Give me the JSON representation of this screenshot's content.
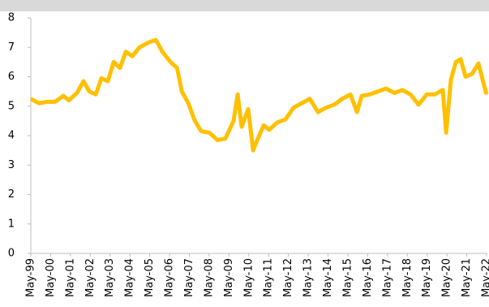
{
  "chart_data": {
    "type": "line",
    "x": [
      1999.33,
      1999.74,
      2000.15,
      2000.56,
      2000.97,
      2001.25,
      2001.66,
      2001.99,
      2002.28,
      2002.61,
      2002.89,
      2003.22,
      2003.51,
      2003.83,
      2004.12,
      2004.45,
      2004.82,
      2005.23,
      2005.64,
      2005.97,
      2006.38,
      2006.71,
      2006.95,
      2007.28,
      2007.61,
      2007.93,
      2008.34,
      2008.75,
      2009.15,
      2009.56,
      2009.77,
      2009.97,
      2010.3,
      2010.55,
      2010.79,
      2011.08,
      2011.36,
      2011.77,
      2012.18,
      2012.59,
      2013.0,
      2013.41,
      2013.82,
      2014.23,
      2014.64,
      2015.05,
      2015.46,
      2015.79,
      2016.03,
      2016.44,
      2016.85,
      2017.26,
      2017.67,
      2018.08,
      2018.49,
      2018.9,
      2019.31,
      2019.72,
      2020.12,
      2020.29,
      2020.53,
      2020.78,
      2021.02,
      2021.27,
      2021.6,
      2021.92,
      2022.17,
      2022.33
    ],
    "series": [
      {
        "color": "#ffc000",
        "values": [
          5.25,
          5.1,
          5.15,
          5.15,
          5.35,
          5.2,
          5.45,
          5.85,
          5.5,
          5.4,
          5.95,
          5.85,
          6.5,
          6.3,
          6.85,
          6.7,
          7.0,
          7.15,
          7.25,
          6.85,
          6.5,
          6.3,
          5.5,
          5.1,
          4.5,
          4.15,
          4.1,
          3.85,
          3.9,
          4.5,
          5.4,
          4.3,
          4.9,
          3.5,
          3.9,
          4.35,
          4.2,
          4.45,
          4.55,
          4.95,
          5.1,
          5.25,
          4.8,
          4.95,
          5.05,
          5.25,
          5.4,
          4.8,
          5.35,
          5.4,
          5.5,
          5.6,
          5.45,
          5.55,
          5.4,
          5.05,
          5.4,
          5.4,
          5.55,
          4.1,
          5.9,
          6.5,
          6.6,
          6.0,
          6.1,
          6.45,
          5.8,
          5.4
        ]
      }
    ],
    "xlim": [
      1999.33,
      2022.33
    ],
    "xticks": [
      {
        "value": 1999.33,
        "label": "May-99"
      },
      {
        "value": 2000.33,
        "label": "May-00"
      },
      {
        "value": 2001.33,
        "label": "May-01"
      },
      {
        "value": 2002.33,
        "label": "May-02"
      },
      {
        "value": 2003.33,
        "label": "May-03"
      },
      {
        "value": 2004.33,
        "label": "May-04"
      },
      {
        "value": 2005.33,
        "label": "May-05"
      },
      {
        "value": 2006.33,
        "label": "May-06"
      },
      {
        "value": 2007.33,
        "label": "May-07"
      },
      {
        "value": 2008.33,
        "label": "May-08"
      },
      {
        "value": 2009.33,
        "label": "May-09"
      },
      {
        "value": 2010.33,
        "label": "May-10"
      },
      {
        "value": 2011.33,
        "label": "May-11"
      },
      {
        "value": 2012.33,
        "label": "May-12"
      },
      {
        "value": 2013.33,
        "label": "May-13"
      },
      {
        "value": 2014.33,
        "label": "May-14"
      },
      {
        "value": 2015.33,
        "label": "May-15"
      },
      {
        "value": 2016.33,
        "label": "May-16"
      },
      {
        "value": 2017.33,
        "label": "May-17"
      },
      {
        "value": 2018.33,
        "label": "May-18"
      },
      {
        "value": 2019.33,
        "label": "May-19"
      },
      {
        "value": 2020.33,
        "label": "May-20"
      },
      {
        "value": 2021.33,
        "label": "May-21"
      },
      {
        "value": 2022.33,
        "label": "May-22"
      }
    ],
    "ylim": [
      0,
      8
    ],
    "yticks": [
      0,
      1,
      2,
      3,
      4,
      5,
      6,
      7,
      8
    ],
    "grid": false
  }
}
